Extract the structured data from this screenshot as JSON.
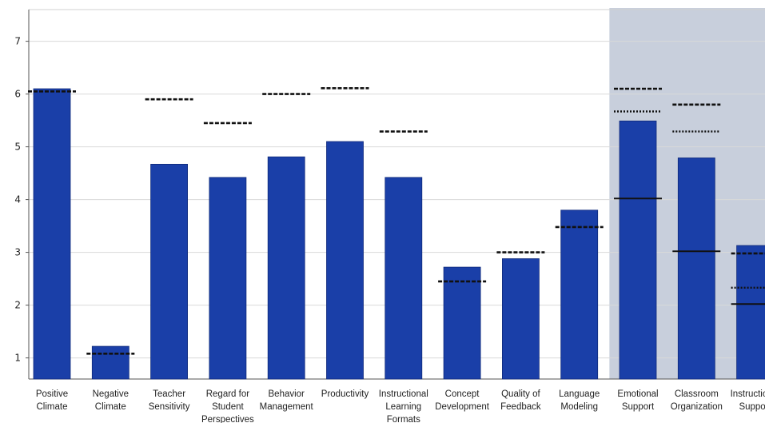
{
  "chart_data": {
    "type": "bar",
    "title": "",
    "xlabel": "",
    "ylabel": "",
    "ylim": [
      0.6,
      7.6
    ],
    "yticks": [
      1,
      2,
      3,
      4,
      5,
      6,
      7
    ],
    "grid": true,
    "bar_color": "#1a3fa8",
    "shade_color": "#c8cfdc",
    "shaded_categories": [
      "Emotional Support",
      "Classroom Organization",
      "Instructional Support"
    ],
    "categories": [
      {
        "name": "Positive Climate",
        "lines": [
          "Positive",
          "Climate"
        ]
      },
      {
        "name": "Negative Climate",
        "lines": [
          "Negative",
          "Climate"
        ]
      },
      {
        "name": "Teacher Sensitivity",
        "lines": [
          "Teacher",
          "Sensitivity"
        ]
      },
      {
        "name": "Regard for Student Perspectives",
        "lines": [
          "Regard for",
          "Student",
          "Perspectives"
        ]
      },
      {
        "name": "Behavior Management",
        "lines": [
          "Behavior",
          "Management"
        ]
      },
      {
        "name": "Productivity",
        "lines": [
          "Productivity"
        ]
      },
      {
        "name": "Instructional Learning Formats",
        "lines": [
          "Instructional",
          "Learning",
          "Formats"
        ]
      },
      {
        "name": "Concept Development",
        "lines": [
          "Concept",
          "Development"
        ]
      },
      {
        "name": "Quality of Feedback",
        "lines": [
          "Quality of",
          "Feedback"
        ]
      },
      {
        "name": "Language Modeling",
        "lines": [
          "Language",
          "Modeling"
        ]
      },
      {
        "name": "Emotional Support",
        "lines": [
          "Emotional",
          "Support"
        ]
      },
      {
        "name": "Classroom Organization",
        "lines": [
          "Classroom",
          "Organization"
        ]
      },
      {
        "name": "Instructional Support",
        "lines": [
          "Instructional",
          "Support"
        ]
      }
    ],
    "values": [
      6.1,
      1.22,
      4.67,
      4.42,
      4.81,
      5.1,
      4.42,
      2.72,
      2.88,
      3.8,
      5.49,
      4.79,
      3.13
    ],
    "reference_lines": [
      {
        "style": "dashed",
        "values": [
          6.05,
          1.08,
          5.9,
          5.45,
          6.0,
          6.11,
          5.29,
          2.45,
          3.0,
          3.48,
          6.1,
          5.8,
          2.98
        ]
      },
      {
        "style": "dotted",
        "values": [
          null,
          null,
          null,
          null,
          null,
          null,
          null,
          null,
          null,
          null,
          5.67,
          5.29,
          2.33
        ]
      },
      {
        "style": "solid",
        "values": [
          null,
          null,
          null,
          null,
          null,
          null,
          null,
          null,
          null,
          null,
          4.02,
          3.02,
          2.02
        ]
      }
    ]
  }
}
